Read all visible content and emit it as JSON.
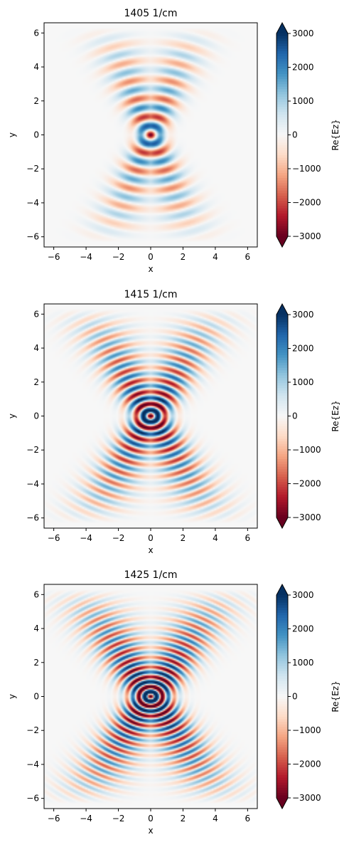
{
  "chart_data": [
    {
      "type": "heatmap",
      "title": "1405 1/cm",
      "xlabel": "x",
      "ylabel": "y",
      "xlim": [
        -6.6,
        6.6
      ],
      "ylim": [
        -6.6,
        6.6
      ],
      "xticks": [
        -6,
        -4,
        -2,
        0,
        2,
        4,
        6
      ],
      "yticks": [
        -6,
        -4,
        -2,
        0,
        2,
        4,
        6
      ],
      "tick_labels": [
        "−6",
        "−4",
        "−2",
        "0",
        "2",
        "4",
        "6"
      ],
      "grid": false,
      "colorbar": {
        "label": "Re{Ez}",
        "colormap": "RdBu",
        "vmin": -3000,
        "vmax": 3000,
        "extend": "both",
        "ticks": [
          3000,
          2000,
          1000,
          0,
          -1000,
          -2000,
          -3000
        ],
        "tick_labels": [
          "3000",
          "2000",
          "1000",
          "0",
          "−1000",
          "−2000",
          "−3000"
        ]
      },
      "field": {
        "half_angle_deg": 22,
        "fringe_period": 1.1,
        "amplitude": 3000,
        "spread": 0.55,
        "reach": 6.3
      }
    },
    {
      "type": "heatmap",
      "title": "1415 1/cm",
      "xlabel": "x",
      "ylabel": "y",
      "xlim": [
        -6.6,
        6.6
      ],
      "ylim": [
        -6.6,
        6.6
      ],
      "xticks": [
        -6,
        -4,
        -2,
        0,
        2,
        4,
        6
      ],
      "yticks": [
        -6,
        -4,
        -2,
        0,
        2,
        4,
        6
      ],
      "tick_labels": [
        "−6",
        "−4",
        "−2",
        "0",
        "2",
        "4",
        "6"
      ],
      "grid": false,
      "colorbar": {
        "label": "Re{Ez}",
        "colormap": "RdBu",
        "vmin": -3000,
        "vmax": 3000,
        "extend": "both",
        "ticks": [
          3000,
          2000,
          1000,
          0,
          -1000,
          -2000,
          -3000
        ],
        "tick_labels": [
          "3000",
          "2000",
          "1000",
          "0",
          "−1000",
          "−2000",
          "−3000"
        ]
      },
      "field": {
        "half_angle_deg": 31,
        "fringe_period": 0.72,
        "amplitude": 4200,
        "spread": 0.75,
        "reach": 6.3
      }
    },
    {
      "type": "heatmap",
      "title": "1425 1/cm",
      "xlabel": "x",
      "ylabel": "y",
      "xlim": [
        -6.6,
        6.6
      ],
      "ylim": [
        -6.6,
        6.6
      ],
      "xticks": [
        -6,
        -4,
        -2,
        0,
        2,
        4,
        6
      ],
      "yticks": [
        -6,
        -4,
        -2,
        0,
        2,
        4,
        6
      ],
      "tick_labels": [
        "−6",
        "−4",
        "−2",
        "0",
        "2",
        "4",
        "6"
      ],
      "grid": false,
      "colorbar": {
        "label": "Re{Ez}",
        "colormap": "RdBu",
        "vmin": -3000,
        "vmax": 3000,
        "extend": "both",
        "ticks": [
          3000,
          2000,
          1000,
          0,
          -1000,
          -2000,
          -3000
        ],
        "tick_labels": [
          "3000",
          "2000",
          "1000",
          "0",
          "−1000",
          "−2000",
          "−3000"
        ]
      },
      "field": {
        "half_angle_deg": 34,
        "fringe_period": 0.58,
        "amplitude": 4800,
        "spread": 0.85,
        "reach": 6.3
      }
    }
  ]
}
